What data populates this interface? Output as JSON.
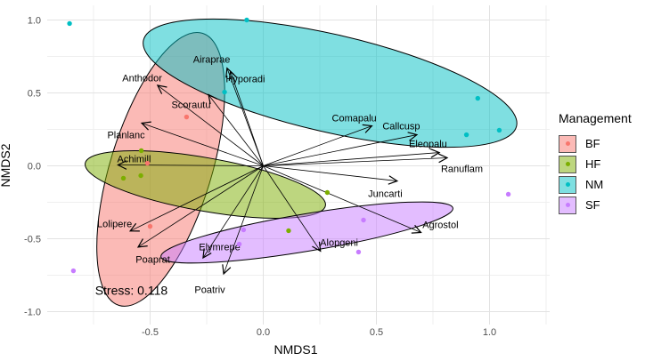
{
  "axes": {
    "x": {
      "label": "NMDS1",
      "ticks": [
        {
          "v": -0.5,
          "label": "-0.5"
        },
        {
          "v": 0.0,
          "label": "0.0"
        },
        {
          "v": 0.5,
          "label": "0.5"
        },
        {
          "v": 1.0,
          "label": "1.0"
        }
      ],
      "minor_breaks": [
        -0.75,
        -0.25,
        0.25,
        0.75,
        1.25
      ],
      "range": [
        -0.955,
        1.266
      ]
    },
    "y": {
      "label": "NMDS2",
      "ticks": [
        {
          "v": 1.0,
          "label": "1.0"
        },
        {
          "v": 0.5,
          "label": "0.5"
        },
        {
          "v": 0.0,
          "label": "0.0"
        },
        {
          "v": -0.5,
          "label": "-0.5"
        },
        {
          "v": -1.0,
          "label": "-1.0"
        }
      ],
      "minor_breaks": [
        -0.75,
        -0.25,
        0.25,
        0.75
      ],
      "range": [
        -1.09,
        1.104
      ]
    }
  },
  "legend": {
    "title": "Management",
    "items": [
      {
        "label": "BF",
        "color": "#F8766D"
      },
      {
        "label": "HF",
        "color": "#7CAE00"
      },
      {
        "label": "NM",
        "color": "#00BFC4"
      },
      {
        "label": "SF",
        "color": "#C77CFF"
      }
    ]
  },
  "chart_data": {
    "type": "scatter",
    "subtype": "NMDS-ordination-biplot",
    "grid": true,
    "legend_position": "right",
    "fill_opacity": 0.5,
    "groups": [
      {
        "id": "BF",
        "color": "#F8766D",
        "points": [
          [
            -0.339,
            0.335
          ],
          [
            -0.512,
            0.018
          ],
          [
            -0.5,
            -0.415
          ]
        ],
        "ellipse": {
          "cx": -0.453,
          "cy": -0.024,
          "rx": 0.224,
          "ry": 0.976,
          "rotation_deg": 17
        }
      },
      {
        "id": "HF",
        "color": "#7CAE00",
        "points": [
          [
            -0.539,
            0.104
          ],
          [
            -0.541,
            -0.067
          ],
          [
            -0.618,
            -0.085
          ],
          [
            0.112,
            -0.445
          ],
          [
            0.283,
            -0.183
          ]
        ],
        "ellipse": {
          "cx": -0.256,
          "cy": -0.128,
          "rx": 0.539,
          "ry": 0.183,
          "rotation_deg": 10
        }
      },
      {
        "id": "NM",
        "color": "#00BFC4",
        "points": [
          [
            -0.856,
            0.976
          ],
          [
            -0.073,
            1.0
          ],
          [
            -0.171,
            0.506
          ],
          [
            0.948,
            0.463
          ],
          [
            1.043,
            0.244
          ],
          [
            0.898,
            0.213
          ]
        ],
        "ellipse": {
          "cx": 0.295,
          "cy": 0.567,
          "rx": 0.846,
          "ry": 0.335,
          "rotation_deg": 13
        }
      },
      {
        "id": "SF",
        "color": "#C77CFF",
        "points": [
          [
            -0.839,
            -0.72
          ],
          [
            -0.087,
            -0.439
          ],
          [
            -0.106,
            -0.537
          ],
          [
            0.443,
            -0.372
          ],
          [
            0.421,
            -0.591
          ],
          [
            1.083,
            -0.195
          ]
        ],
        "ellipse": {
          "cx": 0.193,
          "cy": -0.457,
          "rx": 0.654,
          "ry": 0.128,
          "rotation_deg": -9.5
        }
      }
    ],
    "species_arrows": [
      {
        "name": "Airaprae",
        "x": -0.16,
        "y": 0.67,
        "lx": -0.228,
        "ly": 0.732
      },
      {
        "name": "Hyporadi",
        "x": -0.145,
        "y": 0.648,
        "lx": -0.079,
        "ly": 0.598
      },
      {
        "name": "Anthodor",
        "x": -0.467,
        "y": 0.552,
        "lx": -0.535,
        "ly": 0.604
      },
      {
        "name": "Scorautu",
        "x": -0.242,
        "y": 0.488,
        "lx": -0.319,
        "ly": 0.421
      },
      {
        "name": "Planlanc",
        "x": -0.537,
        "y": 0.293,
        "lx": -0.606,
        "ly": 0.213
      },
      {
        "name": "Achimill",
        "x": -0.642,
        "y": 0.006,
        "lx": -0.571,
        "ly": 0.049
      },
      {
        "name": "Lolipere",
        "x": -0.588,
        "y": -0.447,
        "lx": -0.657,
        "ly": -0.396
      },
      {
        "name": "Poaprat",
        "x": -0.553,
        "y": -0.557,
        "lx": -0.488,
        "ly": -0.64
      },
      {
        "name": "Poatriv",
        "x": -0.175,
        "y": -0.741,
        "lx": -0.236,
        "ly": -0.848
      },
      {
        "name": "Elymrepe",
        "x": -0.266,
        "y": -0.631,
        "lx": -0.193,
        "ly": -0.555
      },
      {
        "name": "Alopgeni",
        "x": 0.253,
        "y": -0.585,
        "lx": 0.335,
        "ly": -0.524
      },
      {
        "name": "Agrostol",
        "x": 0.697,
        "y": -0.457,
        "lx": 0.783,
        "ly": -0.402
      },
      {
        "name": "Juncarti",
        "x": 0.592,
        "y": -0.104,
        "lx": 0.539,
        "ly": -0.189
      },
      {
        "name": "Comapalu",
        "x": 0.48,
        "y": 0.274,
        "lx": 0.402,
        "ly": 0.329
      },
      {
        "name": "Callcusp",
        "x": 0.679,
        "y": 0.213,
        "lx": 0.61,
        "ly": 0.274
      },
      {
        "name": "Eleopalu",
        "x": 0.778,
        "y": 0.091,
        "lx": 0.728,
        "ly": 0.152
      },
      {
        "name": "Ranuflam",
        "x": 0.813,
        "y": 0.055,
        "lx": 0.878,
        "ly": -0.018
      }
    ],
    "annotations": [
      {
        "text": "Stress: 0.118",
        "x": -0.583,
        "y": -0.854,
        "font_px": 14
      }
    ],
    "colors": {
      "gridline_major": "#e2e2e2",
      "gridline_minor": "#efefef",
      "arrow": "#000000",
      "tick_label": "#4d4d4d",
      "ellipse_stroke": "#000000"
    }
  }
}
